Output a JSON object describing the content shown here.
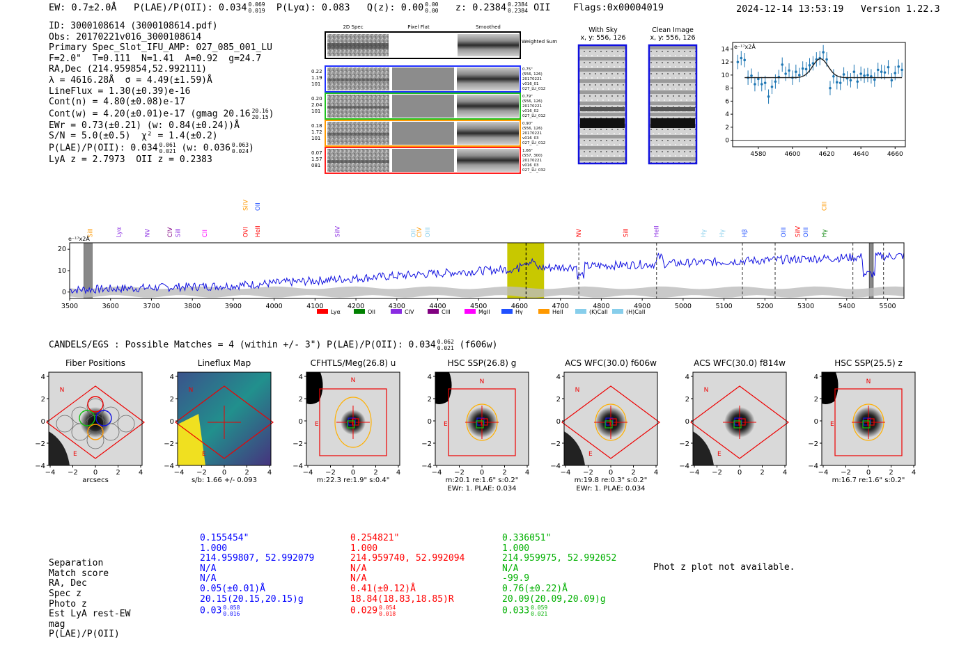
{
  "header": {
    "ew": "EW: 0.7±2.0Å",
    "plae_prefix": "P(LAE)/P(OII): 0.034",
    "plae_hi": "0.069",
    "plae_lo": "0.019",
    "plya": "P(Lyα): 0.083",
    "qz_prefix": "Q(z): 0.00",
    "qz_hi": "0.00",
    "qz_lo": "0.00",
    "z_prefix": "z: 0.2384",
    "z_hi": "0.2384",
    "z_lo": "0.2384",
    "z_line": "OII",
    "flags": "Flags:0x00004019",
    "timestamp": "2024-12-14 13:53:19",
    "version": "Version 1.22.3"
  },
  "info": {
    "line1": "ID: 3000108614 (3000108614.pdf)",
    "line2": "Obs: 20170221v016_3000108614",
    "line3": "Primary Spec_Slot_IFU_AMP: 027_085_001_LU",
    "line4": "F=2.0\"  T=0.111  N=1.41  A=0.92  g=24.7",
    "line5": "RA,Dec (214.959854,52.992111)",
    "line6": "λ = 4616.28Å  σ = 4.49(±1.59)Å",
    "line7": "LineFlux = 1.30(±0.39)e-16",
    "line8": "Cont(n) = 4.80(±0.08)e-17",
    "line9_prefix": "Cont(w) = 4.20(±0.01)e-17 (gmag 20.16",
    "line9_hi": "20.16",
    "line9_lo": "20.15",
    "line9_suffix": ")",
    "line10": "EWr = 0.73(±0.21) (w: 0.84(±0.24))Å",
    "line11": "S/N = 5.0(±0.5)  χ² = 1.4(±0.2)",
    "line12_prefix": "P(LAE)/P(OII): 0.034",
    "line12_hi": "0.061",
    "line12_lo": "0.021",
    "line12_mid": " (w: 0.036",
    "line12_hi2": "0.063",
    "line12_lo2": "0.024",
    "line12_suffix": ")",
    "line13": "LyA z = 2.7973  OII z = 0.2383"
  },
  "cutouts": {
    "col_2d": "2D Spec",
    "col_flat": "Pixel Flat",
    "col_smooth": "Smoothed",
    "weighted": "Weighted Sum",
    "rows": [
      {
        "left1": "0.22",
        "left2": "1.19",
        "left3": "101",
        "r1": "0.75\"",
        "r2": "(556, 126)",
        "r3": "20170221",
        "r4": "v016_01",
        "r5": "027_LU_012",
        "color": "#2030ff"
      },
      {
        "left1": "0.20",
        "left2": "2.04",
        "left3": "101",
        "r1": "0.79\"",
        "r2": "(556, 126)",
        "r3": "20170221",
        "r4": "v016_02",
        "r5": "027_LU_012",
        "color": "#20c020"
      },
      {
        "left1": "0.18",
        "left2": "1.72",
        "left3": "101",
        "r1": "0.90\"",
        "r2": "(556, 126)",
        "r3": "20170221",
        "r4": "v016_03",
        "r5": "027_LU_012",
        "color": "#ff9900"
      },
      {
        "left1": "0.07",
        "left2": "1.57",
        "left3": "081",
        "r1": "1.66\"",
        "r2": "(557, 300)",
        "r3": "20170221",
        "r4": "v016_03",
        "r5": "027_LU_032",
        "color": "#ff2020"
      }
    ]
  },
  "sky": {
    "with_sky_title": "With Sky",
    "with_sky_coords": "x, y: 556, 126",
    "clean_title": "Clean Image",
    "clean_coords": "x, y: 556, 126"
  },
  "zoom_chart": {
    "type": "line",
    "unit": "e⁻¹⁷x2Å",
    "xlim": [
      4565,
      4666
    ],
    "ylim": [
      -1,
      15
    ],
    "xticks": [
      4580,
      4600,
      4620,
      4640,
      4660
    ],
    "yticks": [
      0,
      2,
      4,
      6,
      8,
      10,
      12,
      14
    ],
    "x": [
      4568,
      4570,
      4572,
      4574,
      4576,
      4578,
      4580,
      4582,
      4584,
      4586,
      4588,
      4590,
      4592,
      4594,
      4596,
      4598,
      4600,
      4602,
      4604,
      4606,
      4608,
      4610,
      4612,
      4614,
      4616,
      4618,
      4620,
      4622,
      4624,
      4626,
      4628,
      4630,
      4632,
      4634,
      4636,
      4638,
      4640,
      4642,
      4644,
      4646,
      4648,
      4650,
      4652,
      4654,
      4656,
      4658,
      4660,
      4662,
      4664
    ],
    "y": [
      12.0,
      12.6,
      12.3,
      9.6,
      9.9,
      8.6,
      9.4,
      8.6,
      8.8,
      6.7,
      8.2,
      9.0,
      9.7,
      11.6,
      10.2,
      10.7,
      9.6,
      10.5,
      10.0,
      11.0,
      10.9,
      11.5,
      11.8,
      12.4,
      12.6,
      13.5,
      12.4,
      8.0,
      9.8,
      8.9,
      8.8,
      10.1,
      9.5,
      9.2,
      10.5,
      9.0,
      10.2,
      9.9,
      10.0,
      9.8,
      9.3,
      10.8,
      10.5,
      10.4,
      11.2,
      9.2,
      10.3,
      11.3,
      10.8
    ],
    "fit_base": 9.6,
    "fit_amp": 2.9,
    "fit_mu": 4616.3,
    "fit_sigma": 4.5
  },
  "spectrum_chart": {
    "type": "line",
    "unit": "e⁻¹⁷x2Å",
    "xlim": [
      3500,
      5540
    ],
    "ylim": [
      -3,
      23
    ],
    "xticks": [
      3500,
      3600,
      3700,
      3800,
      3900,
      4000,
      4100,
      4200,
      4300,
      4400,
      4500,
      4600,
      4700,
      4800,
      4900,
      5000,
      5100,
      5200,
      5300,
      5400,
      5500
    ],
    "yticks": [
      0,
      10,
      20
    ],
    "highlight": [
      4570,
      4660
    ],
    "line_center": 4616,
    "lines": [
      {
        "name": "SiII",
        "x": 3550,
        "row": 1,
        "color": "#ff9900"
      },
      {
        "name": "Lyα",
        "x": 3620,
        "row": 1,
        "color": "#8a2be2"
      },
      {
        "name": "NV",
        "x": 3690,
        "row": 1,
        "color": "#8a2be2"
      },
      {
        "name": "CIV",
        "x": 3745,
        "row": 1,
        "color": "#800080"
      },
      {
        "name": "SiII",
        "x": 3765,
        "row": 1,
        "color": "#8a2be2"
      },
      {
        "name": "CII",
        "x": 3830,
        "row": 1,
        "color": "#ff00ff"
      },
      {
        "name": "OVI",
        "x": 3930,
        "row": 1,
        "color": "#ff0000"
      },
      {
        "name": "HeII",
        "x": 3960,
        "row": 1,
        "color": "#ff0000"
      },
      {
        "name": "SiIV",
        "x": 3930,
        "row": 0,
        "color": "#ff9900"
      },
      {
        "name": "OII",
        "x": 3960,
        "row": 0,
        "color": "#2050ff"
      },
      {
        "name": "SiIV",
        "x": 4155,
        "row": 1,
        "color": "#8a2be2"
      },
      {
        "name": "OII",
        "x": 4340,
        "row": 1,
        "color": "#87ceeb"
      },
      {
        "name": "CIV",
        "x": 4355,
        "row": 1,
        "color": "#ff9900"
      },
      {
        "name": "OIII",
        "x": 4375,
        "row": 1,
        "color": "#87ceeb"
      },
      {
        "name": "NV",
        "x": 4745,
        "row": 1,
        "color": "#ff0000"
      },
      {
        "name": "SiII",
        "x": 4860,
        "row": 1,
        "color": "#ff0000"
      },
      {
        "name": "HeII",
        "x": 4935,
        "row": 1,
        "color": "#8a2be2"
      },
      {
        "name": "Hγ",
        "x": 5050,
        "row": 1,
        "color": "#87ceeb"
      },
      {
        "name": "Hγ",
        "x": 5095,
        "row": 1,
        "color": "#87ceeb"
      },
      {
        "name": "Hβ",
        "x": 5150,
        "row": 1,
        "color": "#2050ff"
      },
      {
        "name": "OIII",
        "x": 5245,
        "row": 1,
        "color": "#2050ff"
      },
      {
        "name": "SiIV",
        "x": 5280,
        "row": 1,
        "color": "#ff0000"
      },
      {
        "name": "OIII",
        "x": 5300,
        "row": 1,
        "color": "#2050ff"
      },
      {
        "name": "Hγ",
        "x": 5345,
        "row": 1,
        "color": "#008000"
      },
      {
        "name": "CIII",
        "x": 5345,
        "row": 0,
        "color": "#ff9900"
      }
    ],
    "dashed_lines": [
      4616,
      4745,
      4935,
      5145,
      5225,
      5415,
      5490
    ],
    "grey_bands": [
      [
        3535,
        3555
      ],
      [
        5455,
        5465
      ]
    ],
    "legend": [
      {
        "label": "Lyα",
        "color": "#ff0000"
      },
      {
        "label": "OII",
        "color": "#008000"
      },
      {
        "label": "CIV",
        "color": "#8a2be2"
      },
      {
        "label": "CIII",
        "color": "#800080"
      },
      {
        "label": "MgII",
        "color": "#ff00ff"
      },
      {
        "label": "Hγ",
        "color": "#2050ff"
      },
      {
        "label": "HeII",
        "color": "#ff9900"
      },
      {
        "label": "(K)CaII",
        "color": "#87ceeb"
      },
      {
        "label": "(H)CaII",
        "color": "#87ceeb"
      }
    ]
  },
  "matches": {
    "title_prefix": "CANDELS/EGS : Possible Matches = 4 (within +/- 3\")  P(LAE)/P(OII): 0.034",
    "title_hi": "0.062",
    "title_lo": "0.021",
    "title_suffix": "(f606w)"
  },
  "stamps": [
    {
      "title": "Fiber Positions",
      "sub1": "arcsecs",
      "sub2": ""
    },
    {
      "title": "Lineflux Map",
      "sub1": "s/b: 1.66 +/- 0.093",
      "sub2": ""
    },
    {
      "title": "CFHTLS/Meg(26.8) u",
      "sub1": "m:22.3  re:1.9\"  s:0.4\"",
      "sub2": ""
    },
    {
      "title": "HSC SSP(26.8) g",
      "sub1": "m:20.1  re:1.6\"  s:0.2\"",
      "sub2": "EWr: 1. PLAE: 0.034"
    },
    {
      "title": "ACS WFC(30.0) f606w",
      "sub1": "m:19.8  re:0.3\"  s:0.2\"",
      "sub2": "EWr: 1. PLAE: 0.034"
    },
    {
      "title": "ACS WFC(30.0) f814w",
      "sub1": "",
      "sub2": ""
    },
    {
      "title": "HSC SSP(25.5) z",
      "sub1": "m:16.7  re:1.6\"  s:0.2\"",
      "sub2": ""
    }
  ],
  "stamp_axis": {
    "ticks": [
      "4",
      "2",
      "0",
      "−2",
      "−4"
    ],
    "xticks": [
      "−4",
      "−2",
      "0",
      "2",
      "4"
    ],
    "n": "N",
    "e": "E"
  },
  "table": {
    "labels": [
      "Separation",
      "Match score",
      "RA, Dec",
      "Spec z",
      "Photo z",
      "Est LyA rest-EW",
      "mag",
      "P(LAE)/P(OII)"
    ],
    "columns": [
      {
        "color": "blue",
        "sep": "0.155454\"",
        "score": "1.000",
        "radec": "214.959807, 52.992079",
        "specz": "N/A",
        "photz": "N/A",
        "ew": "0.05(±0.01)Å",
        "mag": "20.15(20.15,20.15)g",
        "plae": "0.03",
        "plae_hi": "0.058",
        "plae_lo": "0.016"
      },
      {
        "color": "red",
        "sep": "0.254821\"",
        "score": "1.000",
        "radec": "214.959740, 52.992094",
        "specz": "N/A",
        "photz": "N/A",
        "ew": "0.41(±0.12)Å",
        "mag": "18.84(18.83,18.85)R",
        "plae": "0.029",
        "plae_hi": "0.054",
        "plae_lo": "0.018"
      },
      {
        "color": "green",
        "sep": "0.336051\"",
        "score": "1.000",
        "radec": "214.959975, 52.992052",
        "specz": "N/A",
        "photz": "-99.9",
        "ew": "0.76(±0.22)Å",
        "mag": "20.09(20.09,20.09)g",
        "plae": "0.033",
        "plae_hi": "0.059",
        "plae_lo": "0.021"
      }
    ],
    "photz_note": "Phot z plot not available."
  }
}
